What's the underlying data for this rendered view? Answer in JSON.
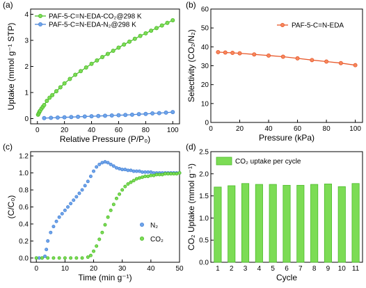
{
  "colors": {
    "green": "#4cbb2a",
    "green_fill": "#7cdc55",
    "blue": "#4a84d6",
    "blue_fill": "#6ea4ea",
    "orange": "#e8582a",
    "orange_fill": "#f6875d"
  },
  "chart_data": [
    {
      "panel": "(a)",
      "type": "line",
      "xlabel": "Relative Pressure (P/P₀)",
      "ylabel": "Uptake (mmol g⁻¹ STP)",
      "xlim": [
        -5,
        105
      ],
      "ylim": [
        -0.2,
        4.2
      ],
      "xticks": [
        0,
        20,
        40,
        60,
        80,
        100
      ],
      "yticks": [
        0,
        1,
        2,
        3,
        4
      ],
      "legend": "top-left",
      "series": [
        {
          "name": "PAF-5-C=N-EDA-CO₂@298 K",
          "color": "green",
          "x": [
            0.5,
            1,
            1.5,
            2,
            3,
            4,
            5,
            7,
            9,
            11,
            14,
            17,
            20,
            24,
            28,
            32,
            36,
            40,
            44,
            48,
            52,
            56,
            60,
            64,
            68,
            72,
            76,
            80,
            84,
            88,
            92,
            96,
            100
          ],
          "y": [
            0.15,
            0.2,
            0.26,
            0.3,
            0.38,
            0.45,
            0.52,
            0.68,
            0.8,
            0.9,
            1.05,
            1.2,
            1.35,
            1.52,
            1.68,
            1.82,
            1.96,
            2.1,
            2.23,
            2.36,
            2.48,
            2.6,
            2.72,
            2.84,
            2.95,
            3.06,
            3.17,
            3.27,
            3.37,
            3.47,
            3.57,
            3.67,
            3.77
          ]
        },
        {
          "name": "PAF-5-C=N-EDA-N₂@298 K",
          "color": "blue",
          "x": [
            5,
            10,
            15,
            20,
            25,
            30,
            35,
            40,
            45,
            50,
            55,
            60,
            65,
            70,
            75,
            80,
            85,
            90,
            95,
            100
          ],
          "y": [
            0.02,
            0.03,
            0.04,
            0.05,
            0.06,
            0.07,
            0.08,
            0.09,
            0.1,
            0.11,
            0.12,
            0.13,
            0.14,
            0.15,
            0.17,
            0.18,
            0.2,
            0.21,
            0.23,
            0.25
          ]
        }
      ]
    },
    {
      "panel": "(b)",
      "type": "line",
      "xlabel": "Pressure (kPa)",
      "ylabel": "Selectivity (CO₂/N₂)",
      "xlim": [
        0,
        105
      ],
      "ylim": [
        0,
        60
      ],
      "xticks": [
        0,
        20,
        40,
        60,
        80,
        100
      ],
      "yticks": [
        0,
        10,
        20,
        30,
        40,
        50,
        60
      ],
      "legend": "top-right",
      "series": [
        {
          "name": "PAF-5-C=N-EDA",
          "color": "orange",
          "x": [
            5,
            10,
            15,
            20,
            30,
            40,
            50,
            60,
            70,
            80,
            90,
            100
          ],
          "y": [
            37.2,
            37.0,
            36.8,
            36.6,
            36.0,
            35.4,
            34.8,
            33.9,
            33.0,
            32.2,
            31.4,
            30.3
          ]
        }
      ]
    },
    {
      "panel": "(c)",
      "type": "scatter",
      "xlabel": "Time (min g⁻¹)",
      "ylabel": "(C/C₀)",
      "xlim": [
        -2,
        50
      ],
      "ylim": [
        -0.05,
        1.25
      ],
      "xticks": [
        0,
        10,
        20,
        30,
        40,
        50
      ],
      "yticks": [
        0.0,
        0.2,
        0.4,
        0.6,
        0.8,
        1.0,
        1.2
      ],
      "legend": "center-right",
      "series": [
        {
          "name": "N₂",
          "color": "blue",
          "x": [
            0,
            1,
            2,
            3,
            3.5,
            4,
            5,
            6,
            7,
            8,
            9,
            10,
            11,
            12,
            13,
            14,
            15,
            16,
            17,
            18,
            19,
            20,
            21,
            22,
            23,
            24,
            25,
            26,
            27,
            28,
            29,
            30,
            31,
            32,
            33,
            34,
            35,
            36,
            37,
            38,
            39,
            40,
            41,
            42,
            43,
            44,
            45,
            46,
            47,
            48,
            49,
            50
          ],
          "y": [
            0,
            0,
            0,
            0.02,
            0.1,
            0.2,
            0.3,
            0.37,
            0.43,
            0.48,
            0.52,
            0.56,
            0.6,
            0.64,
            0.68,
            0.72,
            0.76,
            0.8,
            0.85,
            0.9,
            0.96,
            1.02,
            1.07,
            1.1,
            1.12,
            1.13,
            1.12,
            1.1,
            1.08,
            1.06,
            1.05,
            1.04,
            1.04,
            1.03,
            1.03,
            1.02,
            1.02,
            1.02,
            1.01,
            1.01,
            1.01,
            1.01,
            1.0,
            1.0,
            1.0,
            1.0,
            1.0,
            1.0,
            1.0,
            1.0,
            1.0,
            1.0
          ]
        },
        {
          "name": "CO₂",
          "color": "green",
          "x": [
            0,
            2,
            4,
            6,
            8,
            10,
            12,
            14,
            16,
            18,
            19,
            20,
            21,
            22,
            23,
            24,
            25,
            26,
            27,
            28,
            29,
            30,
            31,
            32,
            33,
            34,
            35,
            36,
            37,
            38,
            39,
            40,
            41,
            42,
            43,
            44,
            45,
            46,
            47,
            48,
            49,
            50
          ],
          "y": [
            0,
            0,
            0,
            0,
            0,
            0,
            0,
            0,
            0,
            0.01,
            0.03,
            0.08,
            0.14,
            0.22,
            0.3,
            0.39,
            0.48,
            0.56,
            0.63,
            0.7,
            0.75,
            0.8,
            0.84,
            0.87,
            0.89,
            0.91,
            0.93,
            0.94,
            0.95,
            0.96,
            0.96,
            0.97,
            0.97,
            0.98,
            0.98,
            0.98,
            0.99,
            0.99,
            0.99,
            0.99,
            0.99,
            1.0
          ]
        }
      ]
    },
    {
      "panel": "(d)",
      "type": "bar",
      "xlabel": "Cycle",
      "ylabel": "CO₂ Uptake (mmol g⁻¹)",
      "ylim": [
        0,
        2.5
      ],
      "yticks": [
        0.0,
        0.5,
        1.0,
        1.5,
        2.0,
        2.5
      ],
      "legend": "top-left",
      "categories": [
        "1",
        "2",
        "3",
        "4",
        "5",
        "6",
        "7",
        "8",
        "9",
        "10",
        "11"
      ],
      "series": [
        {
          "name": "CO₂ uptake per cycle",
          "color": "green",
          "values": [
            1.7,
            1.73,
            1.78,
            1.76,
            1.76,
            1.74,
            1.74,
            1.76,
            1.77,
            1.71,
            1.78
          ]
        }
      ]
    }
  ]
}
